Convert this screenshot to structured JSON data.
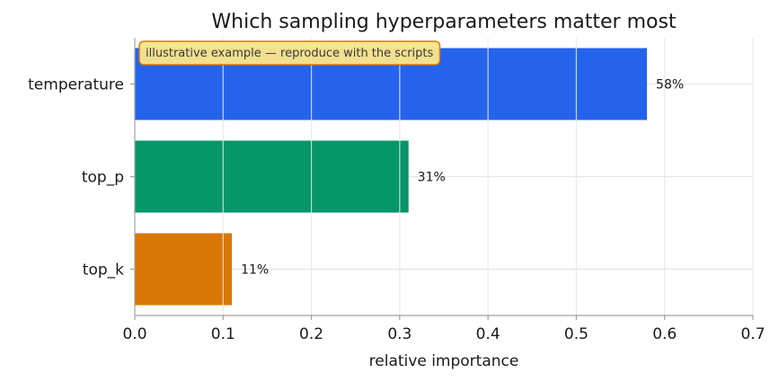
{
  "chart_data": {
    "type": "bar",
    "orientation": "horizontal",
    "title": "Which sampling hyperparameters matter most",
    "xlabel": "relative importance",
    "ylabel": "",
    "xlim": [
      0,
      0.7
    ],
    "xticks": [
      "0.0",
      "0.1",
      "0.2",
      "0.3",
      "0.4",
      "0.5",
      "0.6",
      "0.7"
    ],
    "grid": true,
    "categories": [
      "temperature",
      "top_p",
      "top_k"
    ],
    "values": [
      0.58,
      0.31,
      0.11
    ],
    "value_labels": [
      "58%",
      "31%",
      "11%"
    ],
    "colors": [
      "#2563eb",
      "#059669",
      "#d97706"
    ],
    "annotation": "illustrative example — reproduce with the scripts"
  }
}
